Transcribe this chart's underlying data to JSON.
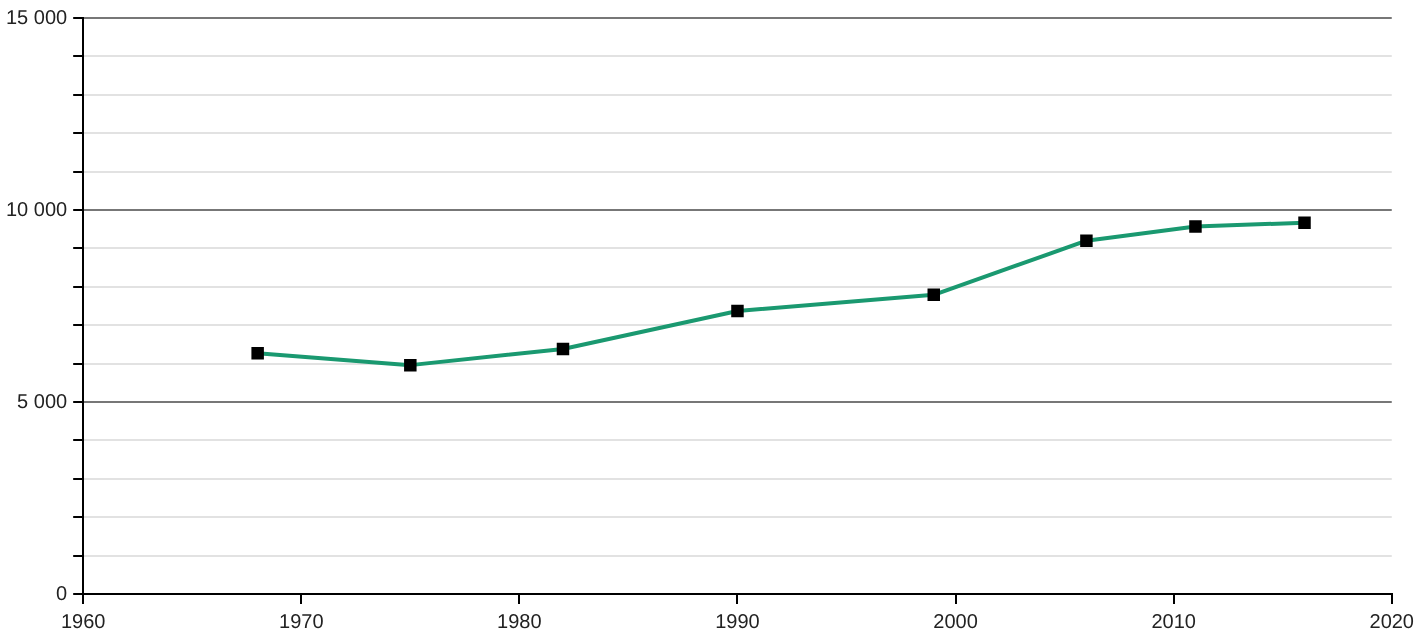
{
  "chart_data": {
    "type": "line",
    "x": [
      1968,
      1975,
      1982,
      1990,
      1999,
      2006,
      2011,
      2016
    ],
    "series": [
      {
        "color": "#1a9970",
        "values": [
          6270,
          5960,
          6380,
          7370,
          7790,
          9200,
          9570,
          9670
        ]
      }
    ],
    "marker": "square",
    "xlim": [
      1960,
      2020
    ],
    "xticks": [
      1960,
      1970,
      1980,
      1990,
      2000,
      2010,
      2020
    ],
    "ylim": [
      0,
      15000
    ],
    "yticks": [
      0,
      {
        "value": 1000,
        "label": null
      },
      {
        "value": 2000,
        "label": null
      },
      {
        "value": 3000,
        "label": null
      },
      {
        "value": 4000,
        "label": null
      },
      {
        "value": 5000,
        "label": "5 000"
      },
      {
        "value": 6000,
        "label": null
      },
      {
        "value": 7000,
        "label": null
      },
      {
        "value": 8000,
        "label": null
      },
      {
        "value": 9000,
        "label": null
      },
      {
        "value": 10000,
        "label": "10 000"
      },
      {
        "value": 11000,
        "label": null
      },
      {
        "value": 12000,
        "label": null
      },
      {
        "value": 13000,
        "label": null
      },
      {
        "value": 14000,
        "label": null
      },
      {
        "value": 15000,
        "label": "15 000"
      }
    ],
    "grid": "y",
    "legend": false
  }
}
